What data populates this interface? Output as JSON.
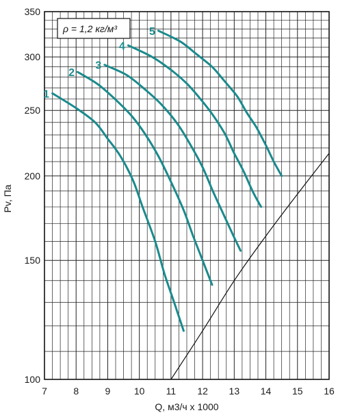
{
  "chart_data": {
    "type": "line",
    "xlabel": "Q, м3/ч х 1000",
    "ylabel": "Pv, Па",
    "note": "ρ = 1,2 кг/м³",
    "x_ticks": [
      "7",
      "8",
      "9",
      "10",
      "11",
      "12",
      "13",
      "14",
      "15",
      "16"
    ],
    "y_ticks": [
      "100",
      "150",
      "200",
      "250",
      "300",
      "350"
    ],
    "xlim": [
      7,
      16
    ],
    "ylim": [
      100,
      350
    ],
    "y_scale": "log",
    "grid": true,
    "curve_color": "#1a8a8c",
    "series": [
      {
        "name": "1",
        "x": [
          7.25,
          8.0,
          8.6,
          9.0,
          9.4,
          9.8,
          10.1,
          10.5,
          10.8,
          11.1,
          11.4
        ],
        "y": [
          265,
          252,
          240,
          227,
          214,
          197,
          180,
          160,
          143,
          130,
          118
        ]
      },
      {
        "name": "2",
        "x": [
          8.05,
          8.7,
          9.3,
          9.8,
          10.2,
          10.6,
          11.0,
          11.4,
          11.7,
          12.0,
          12.3
        ],
        "y": [
          285,
          273,
          258,
          244,
          230,
          214,
          196,
          178,
          163,
          150,
          138
        ]
      },
      {
        "name": "3",
        "x": [
          8.9,
          9.6,
          10.2,
          10.7,
          11.2,
          11.6,
          12.0,
          12.3,
          12.6,
          12.95,
          13.2
        ],
        "y": [
          292,
          282,
          268,
          255,
          239,
          223,
          206,
          191,
          178,
          164,
          155
        ]
      },
      {
        "name": "4",
        "x": [
          9.65,
          10.4,
          11.0,
          11.5,
          11.9,
          12.3,
          12.7,
          13.0,
          13.3,
          13.6,
          13.85
        ],
        "y": [
          312,
          300,
          287,
          274,
          261,
          247,
          231,
          216,
          203,
          189,
          180
        ]
      },
      {
        "name": "5",
        "x": [
          10.6,
          11.3,
          11.8,
          12.3,
          12.7,
          13.1,
          13.4,
          13.7,
          14.0,
          14.25,
          14.5
        ],
        "y": [
          328,
          316,
          303,
          290,
          276,
          262,
          248,
          236,
          222,
          210,
          200
        ]
      },
      {
        "name": "",
        "x": [
          11.0,
          12.0,
          13.0,
          14.0,
          15.0,
          16.0
        ],
        "y": [
          100,
          118,
          140,
          163,
          188,
          216
        ]
      }
    ]
  }
}
